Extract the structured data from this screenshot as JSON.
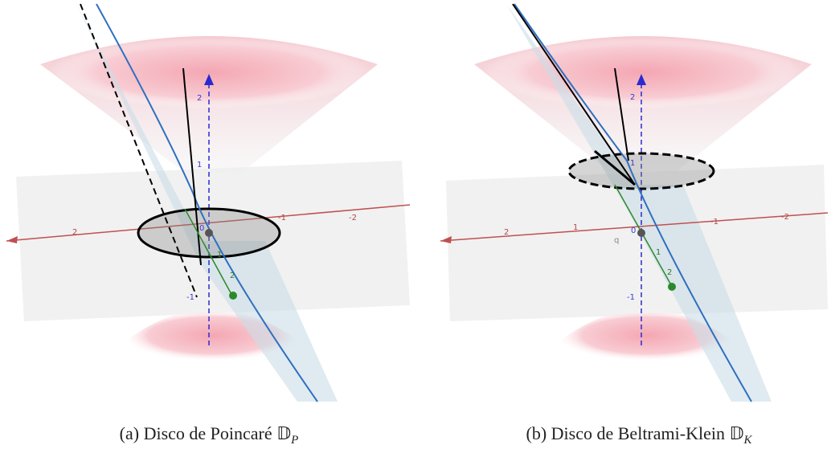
{
  "panels": [
    {
      "caption": {
        "label": "(a)",
        "text": "Disco de Poincaré",
        "symbol": "𝔻",
        "subscript": "P"
      },
      "tick_labels": [
        "2",
        "-1",
        "-2",
        "0",
        "2",
        "1",
        "-1",
        "1",
        "2"
      ]
    },
    {
      "caption": {
        "label": "(b)",
        "text": "Disco de Beltrami-Klein",
        "symbol": "𝔻",
        "subscript": "K"
      },
      "tick_labels": [
        "2",
        "1",
        "0",
        "-1",
        "-2",
        "q",
        "2",
        "1",
        "-1",
        "1",
        "2"
      ]
    }
  ]
}
